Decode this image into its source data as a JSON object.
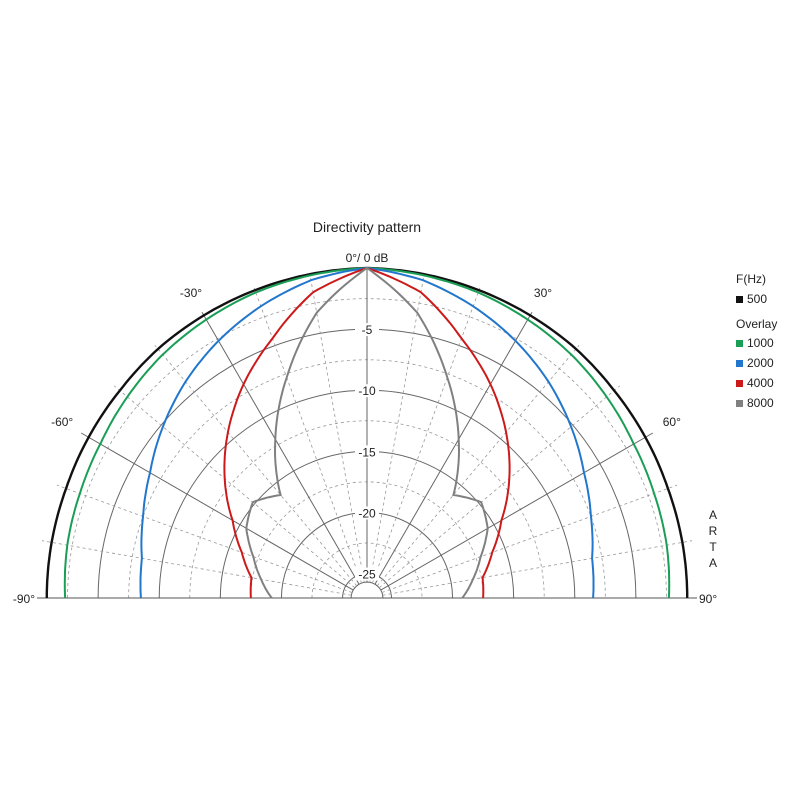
{
  "chart_data": {
    "type": "polar",
    "title": "Directivity pattern",
    "top_label": "0°/ 0 dB",
    "radial_ticks": [
      "-5",
      "-10",
      "-15",
      "-20",
      "-25"
    ],
    "radial_range_db": [
      -27,
      0
    ],
    "angle_range_deg": [
      -90,
      90
    ],
    "angle_labels": [
      {
        "angle": -90,
        "text": "-90°"
      },
      {
        "angle": -60,
        "text": "-60°"
      },
      {
        "angle": -30,
        "text": "-30°"
      },
      {
        "angle": 30,
        "text": "30°"
      },
      {
        "angle": 60,
        "text": "60°"
      },
      {
        "angle": 90,
        "text": "90°"
      }
    ],
    "grid": true,
    "side_label": [
      "A",
      "R",
      "T",
      "A"
    ],
    "legend": {
      "placement": "right",
      "heading": "F(Hz)",
      "overlay_heading": "Overlay"
    },
    "angles_deg": [
      0,
      10,
      20,
      30,
      40,
      50,
      60,
      70,
      80,
      90
    ],
    "series": [
      {
        "name": "500",
        "color": "#111111",
        "db": [
          0,
          -0.1,
          -0.2,
          -0.3,
          -0.4,
          -0.6,
          -0.7,
          -0.8,
          -0.8,
          -0.8
        ]
      },
      {
        "name": "1000",
        "color": "#1a9e55",
        "db": [
          0,
          -0.2,
          -0.4,
          -0.7,
          -1.0,
          -1.4,
          -1.8,
          -2.0,
          -2.1,
          -2.3
        ]
      },
      {
        "name": "2000",
        "color": "#2277cc",
        "db": [
          0,
          -0.6,
          -1.6,
          -2.7,
          -3.9,
          -5.2,
          -6.5,
          -7.5,
          -8.3,
          -8.5
        ]
      },
      {
        "name": "4000",
        "color": "#cc1a1a",
        "db": [
          0,
          -1.6,
          -4.4,
          -6.8,
          -9.3,
          -11.8,
          -14.3,
          -16.1,
          -17.4,
          -17.5
        ]
      },
      {
        "name": "8000",
        "color": "#808080",
        "db": [
          0,
          -3.3,
          -7.8,
          -12.0,
          -16.0,
          -14.8,
          -15.6,
          -17.1,
          -18.2,
          -19.2
        ]
      }
    ]
  }
}
